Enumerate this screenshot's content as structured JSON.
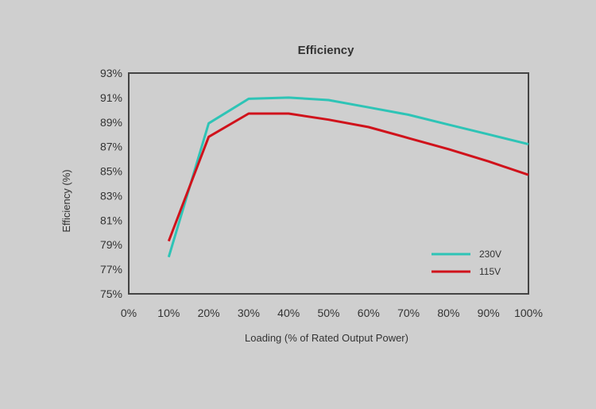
{
  "chart_data": {
    "type": "line",
    "title": "Efficiency",
    "xlabel": "Loading (% of Rated Output Power)",
    "ylabel": "Efficiency (%)",
    "x_ticks": [
      "0%",
      "10%",
      "20%",
      "30%",
      "40%",
      "50%",
      "60%",
      "70%",
      "80%",
      "90%",
      "100%"
    ],
    "y_ticks": [
      "75%",
      "77%",
      "79%",
      "81%",
      "83%",
      "85%",
      "87%",
      "89%",
      "91%",
      "93%"
    ],
    "xlim": [
      0,
      100
    ],
    "ylim": [
      75,
      93
    ],
    "grid": false,
    "legend_position": "bottom-right",
    "series": [
      {
        "name": "230V",
        "color": "#2ec4b6",
        "x": [
          10,
          20,
          30,
          40,
          50,
          60,
          70,
          80,
          90,
          100
        ],
        "y": [
          78.0,
          88.9,
          90.9,
          91.0,
          90.8,
          90.2,
          89.6,
          88.8,
          88.0,
          87.2
        ]
      },
      {
        "name": "115V",
        "color": "#d0121b",
        "x": [
          10,
          20,
          30,
          40,
          50,
          60,
          70,
          80,
          90,
          100
        ],
        "y": [
          79.3,
          87.8,
          89.7,
          89.7,
          89.2,
          88.6,
          87.7,
          86.8,
          85.8,
          84.7
        ]
      }
    ]
  }
}
